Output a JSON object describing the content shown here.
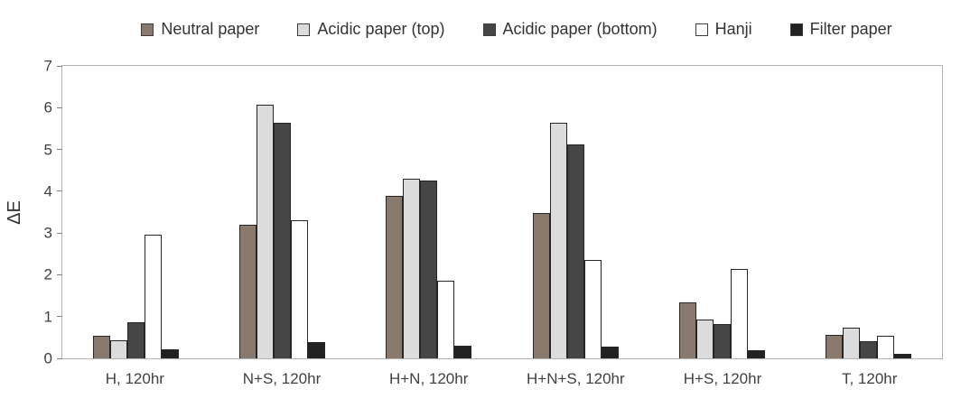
{
  "chart_data": {
    "type": "bar",
    "title": "",
    "xlabel": "",
    "ylabel": "ΔE",
    "ylim": [
      0,
      7
    ],
    "ytick_step": 1,
    "grid": false,
    "legend_position": "top",
    "categories": [
      "H, 120hr",
      "N+S, 120hr",
      "H+N, 120hr",
      "H+N+S, 120hr",
      "H+S, 120hr",
      "T, 120hr"
    ],
    "series": [
      {
        "name": "Neutral paper",
        "color": "#8a7a6e",
        "values": [
          0.55,
          3.2,
          3.9,
          3.48,
          1.33,
          0.57
        ]
      },
      {
        "name": "Acidic paper (top)",
        "color": "#dcdcdc",
        "values": [
          0.43,
          6.08,
          4.3,
          5.65,
          0.93,
          0.74
        ]
      },
      {
        "name": "Acidic paper (bottom)",
        "color": "#464646",
        "values": [
          0.87,
          5.63,
          4.25,
          5.13,
          0.82,
          0.42
        ]
      },
      {
        "name": "Hanji",
        "color": "#ffffff",
        "values": [
          2.97,
          3.3,
          1.85,
          2.35,
          2.15,
          0.55
        ]
      },
      {
        "name": "Filter paper",
        "color": "#222222",
        "values": [
          0.22,
          0.4,
          0.3,
          0.28,
          0.2,
          0.1
        ]
      }
    ]
  },
  "colors": {
    "bar_border": "#262626",
    "plot_border": "#b3b3b3",
    "tick_mark": "#808080",
    "text": "#404040",
    "background": "#ffffff"
  }
}
